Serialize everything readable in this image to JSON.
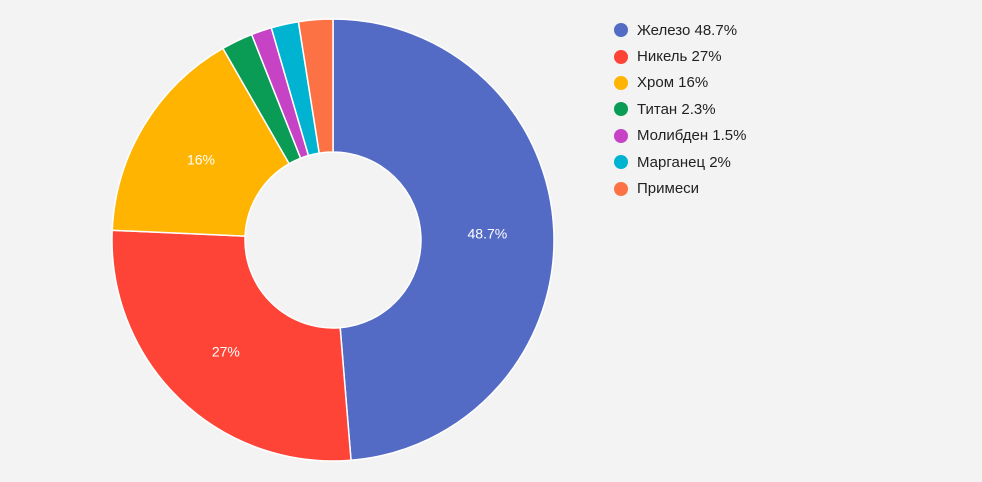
{
  "chart_data": {
    "type": "pie",
    "donut": true,
    "legend_position": "right",
    "series": [
      {
        "label": "Железо",
        "legend_text": "Железо 48.7%",
        "value": 48.7,
        "slice_text": "48.7%",
        "color": "#546bc5"
      },
      {
        "label": "Никель",
        "legend_text": "Никель 27%",
        "value": 27,
        "slice_text": "27%",
        "color": "#fe4436"
      },
      {
        "label": "Хром",
        "legend_text": "Хром 16%",
        "value": 16,
        "slice_text": "16%",
        "color": "#feb400"
      },
      {
        "label": "Титан",
        "legend_text": "Титан 2.3%",
        "value": 2.3,
        "slice_text": "",
        "color": "#0a9c55"
      },
      {
        "label": "Молибден",
        "legend_text": "Молибден 1.5%",
        "value": 1.5,
        "slice_text": "",
        "color": "#c643c6"
      },
      {
        "label": "Марганец",
        "legend_text": "Марганец 2%",
        "value": 2,
        "slice_text": "",
        "color": "#00b3d0"
      },
      {
        "label": "Примеси",
        "legend_text": "Примеси",
        "value": 2.5,
        "slice_text": "",
        "color": "#fd7244"
      }
    ]
  }
}
